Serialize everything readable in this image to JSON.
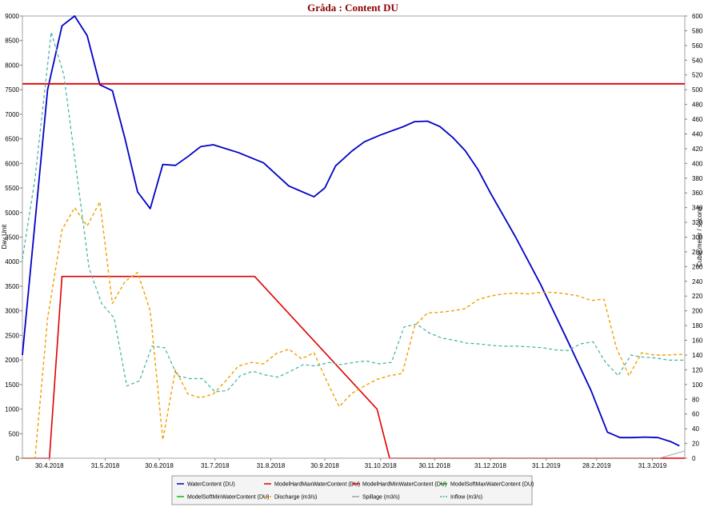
{
  "chart_data": {
    "type": "line",
    "title": "Gråda : Content DU",
    "ylabel_left": "Day Unit",
    "ylabel_right": "Cubic meter / second",
    "ylim_left": [
      0,
      9000
    ],
    "ylim_right": [
      0,
      600
    ],
    "y_ticks_left": [
      0,
      500,
      1000,
      1500,
      2000,
      2500,
      3000,
      3500,
      4000,
      4500,
      5000,
      5500,
      6000,
      6500,
      7000,
      7500,
      8000,
      8500,
      9000
    ],
    "y_ticks_right": [
      0,
      20,
      40,
      60,
      80,
      100,
      120,
      140,
      160,
      180,
      200,
      220,
      240,
      260,
      280,
      300,
      320,
      340,
      360,
      380,
      400,
      420,
      440,
      460,
      480,
      500,
      520,
      540,
      560,
      580,
      600
    ],
    "xlim": [
      "2018-04-15",
      "2019-04-18"
    ],
    "x_ticks": [
      {
        "date": "2018-04-30",
        "label": "30.4.2018"
      },
      {
        "date": "2018-05-31",
        "label": "31.5.2018"
      },
      {
        "date": "2018-06-30",
        "label": "30.6.2018"
      },
      {
        "date": "2018-07-31",
        "label": "31.7.2018"
      },
      {
        "date": "2018-08-31",
        "label": "31.8.2018"
      },
      {
        "date": "2018-09-30",
        "label": "30.9.2018"
      },
      {
        "date": "2018-10-31",
        "label": "31.10.2018"
      },
      {
        "date": "2018-11-30",
        "label": "30.11.2018"
      },
      {
        "date": "2018-12-31",
        "label": "31.12.2018"
      },
      {
        "date": "2019-01-31",
        "label": "31.1.2019"
      },
      {
        "date": "2019-02-28",
        "label": "28.2.2019"
      },
      {
        "date": "2019-03-31",
        "label": "31.3.2019"
      }
    ],
    "series": [
      {
        "name": "WaterContent (DU)",
        "axis": "left",
        "color": "#0000c8",
        "dash": "",
        "width": 1.8,
        "points": [
          [
            "2018-04-15",
            2100
          ],
          [
            "2018-04-29",
            7500
          ],
          [
            "2018-05-07",
            8800
          ],
          [
            "2018-05-14",
            9000
          ],
          [
            "2018-05-21",
            8600
          ],
          [
            "2018-05-28",
            7600
          ],
          [
            "2018-06-04",
            7480
          ],
          [
            "2018-06-11",
            6500
          ],
          [
            "2018-06-18",
            5420
          ],
          [
            "2018-06-25",
            5080
          ],
          [
            "2018-07-02",
            5980
          ],
          [
            "2018-07-09",
            5960
          ],
          [
            "2018-07-16",
            6140
          ],
          [
            "2018-07-23",
            6340
          ],
          [
            "2018-07-30",
            6380
          ],
          [
            "2018-08-13",
            6220
          ],
          [
            "2018-08-27",
            6010
          ],
          [
            "2018-09-10",
            5540
          ],
          [
            "2018-09-24",
            5320
          ],
          [
            "2018-09-30",
            5500
          ],
          [
            "2018-10-06",
            5950
          ],
          [
            "2018-10-15",
            6250
          ],
          [
            "2018-10-22",
            6440
          ],
          [
            "2018-10-31",
            6580
          ],
          [
            "2018-11-12",
            6740
          ],
          [
            "2018-11-19",
            6850
          ],
          [
            "2018-11-26",
            6860
          ],
          [
            "2018-12-03",
            6750
          ],
          [
            "2018-12-10",
            6530
          ],
          [
            "2018-12-17",
            6260
          ],
          [
            "2018-12-24",
            5880
          ],
          [
            "2018-12-31",
            5400
          ],
          [
            "2019-01-14",
            4500
          ],
          [
            "2019-01-28",
            3530
          ],
          [
            "2019-02-11",
            2460
          ],
          [
            "2019-02-25",
            1370
          ],
          [
            "2019-03-06",
            530
          ],
          [
            "2019-03-13",
            420
          ],
          [
            "2019-03-20",
            420
          ],
          [
            "2019-03-27",
            430
          ],
          [
            "2019-04-03",
            420
          ],
          [
            "2019-04-10",
            340
          ],
          [
            "2019-04-15",
            250
          ]
        ]
      },
      {
        "name": "ModelHardMaxWaterContent (DU)",
        "axis": "left",
        "color": "#e00000",
        "dash": "",
        "width": 1.8,
        "points": [
          [
            "2018-04-15",
            7620
          ],
          [
            "2019-04-18",
            7620
          ]
        ]
      },
      {
        "name": "ModelHardMinWaterContent (DU)",
        "axis": "left",
        "color": "#e00000",
        "dash": "",
        "width": 1.6,
        "points": [
          [
            "2018-04-15",
            0
          ],
          [
            "2018-04-30",
            0
          ],
          [
            "2018-05-07",
            3700
          ],
          [
            "2018-08-22",
            3700
          ],
          [
            "2018-10-29",
            1000
          ],
          [
            "2018-11-05",
            0
          ],
          [
            "2019-04-18",
            0
          ]
        ]
      },
      {
        "name": "ModelSoftMaxWaterContent (DU)",
        "axis": "left",
        "color": "#00a000",
        "dash": "",
        "width": 1.2,
        "points": []
      },
      {
        "name": "ModelSoftMinWaterContent (DU)",
        "axis": "left",
        "color": "#00c000",
        "dash": "",
        "width": 1.2,
        "points": []
      },
      {
        "name": "Discharge (m3/s)",
        "axis": "right",
        "color": "#f0a000",
        "dash": "4,3",
        "width": 1.4,
        "points": [
          [
            "2018-04-15",
            0
          ],
          [
            "2018-04-22",
            0
          ],
          [
            "2018-04-29",
            190
          ],
          [
            "2018-05-07",
            310
          ],
          [
            "2018-05-14",
            340
          ],
          [
            "2018-05-21",
            315
          ],
          [
            "2018-05-28",
            348
          ],
          [
            "2018-06-04",
            210
          ],
          [
            "2018-06-11",
            240
          ],
          [
            "2018-06-18",
            252
          ],
          [
            "2018-06-25",
            200
          ],
          [
            "2018-07-02",
            25
          ],
          [
            "2018-07-09",
            120
          ],
          [
            "2018-07-16",
            87
          ],
          [
            "2018-07-23",
            82
          ],
          [
            "2018-07-30",
            87
          ],
          [
            "2018-08-06",
            105
          ],
          [
            "2018-08-13",
            125
          ],
          [
            "2018-08-20",
            130
          ],
          [
            "2018-08-27",
            128
          ],
          [
            "2018-09-03",
            142
          ],
          [
            "2018-09-10",
            148
          ],
          [
            "2018-09-17",
            135
          ],
          [
            "2018-09-24",
            143
          ],
          [
            "2018-10-01",
            105
          ],
          [
            "2018-10-08",
            70
          ],
          [
            "2018-10-15",
            88
          ],
          [
            "2018-10-22",
            98
          ],
          [
            "2018-10-29",
            107
          ],
          [
            "2018-11-05",
            112
          ],
          [
            "2018-11-12",
            115
          ],
          [
            "2018-11-19",
            180
          ],
          [
            "2018-11-26",
            197
          ],
          [
            "2018-12-03",
            198
          ],
          [
            "2018-12-10",
            200
          ],
          [
            "2018-12-17",
            203
          ],
          [
            "2018-12-24",
            215
          ],
          [
            "2018-12-31",
            220
          ],
          [
            "2019-01-07",
            223
          ],
          [
            "2019-01-14",
            224
          ],
          [
            "2019-01-21",
            223
          ],
          [
            "2019-01-28",
            225
          ],
          [
            "2019-02-04",
            225
          ],
          [
            "2019-02-11",
            223
          ],
          [
            "2019-02-18",
            220
          ],
          [
            "2019-02-25",
            214
          ],
          [
            "2019-03-04",
            216
          ],
          [
            "2019-03-11",
            150
          ],
          [
            "2019-03-18",
            112
          ],
          [
            "2019-03-25",
            143
          ],
          [
            "2019-04-01",
            140
          ],
          [
            "2019-04-08",
            140
          ],
          [
            "2019-04-18",
            141
          ]
        ]
      },
      {
        "name": "Spillage (m3/s)",
        "axis": "right",
        "color": "#a0a0a0",
        "dash": "",
        "width": 1,
        "points": [
          [
            "2018-04-15",
            0
          ],
          [
            "2019-04-04",
            0
          ],
          [
            "2019-04-18",
            10
          ]
        ]
      },
      {
        "name": "Inflow (m3/s)",
        "axis": "right",
        "color": "#40b0a0",
        "dash": "4,3",
        "width": 1.2,
        "points": [
          [
            "2018-04-15",
            270
          ],
          [
            "2018-04-22",
            380
          ],
          [
            "2018-05-01",
            578
          ],
          [
            "2018-05-08",
            520
          ],
          [
            "2018-05-15",
            390
          ],
          [
            "2018-05-22",
            258
          ],
          [
            "2018-05-29",
            210
          ],
          [
            "2018-06-05",
            190
          ],
          [
            "2018-06-12",
            98
          ],
          [
            "2018-06-19",
            105
          ],
          [
            "2018-06-26",
            152
          ],
          [
            "2018-07-03",
            150
          ],
          [
            "2018-07-10",
            112
          ],
          [
            "2018-07-17",
            108
          ],
          [
            "2018-07-24",
            108
          ],
          [
            "2018-07-31",
            90
          ],
          [
            "2018-08-07",
            92
          ],
          [
            "2018-08-14",
            112
          ],
          [
            "2018-08-21",
            118
          ],
          [
            "2018-08-28",
            113
          ],
          [
            "2018-09-04",
            110
          ],
          [
            "2018-09-11",
            118
          ],
          [
            "2018-09-18",
            127
          ],
          [
            "2018-09-25",
            125
          ],
          [
            "2018-10-02",
            130
          ],
          [
            "2018-10-09",
            127
          ],
          [
            "2018-10-16",
            130
          ],
          [
            "2018-10-23",
            132
          ],
          [
            "2018-10-30",
            128
          ],
          [
            "2018-11-06",
            130
          ],
          [
            "2018-11-13",
            178
          ],
          [
            "2018-11-20",
            182
          ],
          [
            "2018-11-27",
            170
          ],
          [
            "2018-12-04",
            163
          ],
          [
            "2018-12-11",
            160
          ],
          [
            "2018-12-18",
            156
          ],
          [
            "2018-12-25",
            155
          ],
          [
            "2019-01-01",
            153
          ],
          [
            "2019-01-08",
            152
          ],
          [
            "2019-01-15",
            152
          ],
          [
            "2019-01-22",
            151
          ],
          [
            "2019-01-29",
            150
          ],
          [
            "2019-02-05",
            147
          ],
          [
            "2019-02-12",
            146
          ],
          [
            "2019-02-19",
            155
          ],
          [
            "2019-02-26",
            158
          ],
          [
            "2019-03-05",
            130
          ],
          [
            "2019-03-12",
            112
          ],
          [
            "2019-03-19",
            140
          ],
          [
            "2019-03-26",
            137
          ],
          [
            "2019-04-02",
            136
          ],
          [
            "2019-04-09",
            133
          ],
          [
            "2019-04-18",
            133
          ]
        ]
      }
    ],
    "legend": {
      "placement": "bottom-center"
    },
    "grid": false
  }
}
